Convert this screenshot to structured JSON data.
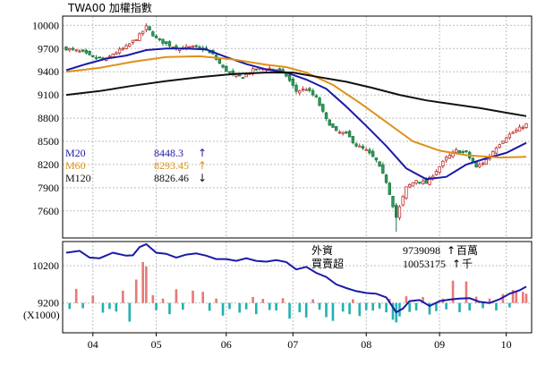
{
  "title": "TWA00 加權指數",
  "x_labels": [
    "04",
    "05",
    "06",
    "07",
    "08",
    "09",
    "10"
  ],
  "chart_data": [
    {
      "type": "candlestick",
      "title": "TWA00 加權指數",
      "yticks": [
        10000,
        9700,
        9400,
        9100,
        8800,
        8500,
        8200,
        7900,
        7600
      ],
      "ylim": [
        7250,
        10120
      ],
      "grid": true,
      "legend": [
        {
          "name": "M20",
          "value": "8448.3",
          "arrow": "↑",
          "color": "#1a1aa8"
        },
        {
          "name": "M60",
          "value": "8293.45",
          "arrow": "↑",
          "color": "#e0901a"
        },
        {
          "name": "M120",
          "value": "8826.46",
          "arrow": "↓",
          "color": "#111111"
        }
      ],
      "close_anchors": [
        [
          0,
          9700
        ],
        [
          5,
          9650
        ],
        [
          8,
          9580
        ],
        [
          12,
          9560
        ],
        [
          14,
          9630
        ],
        [
          18,
          9720
        ],
        [
          22,
          9870
        ],
        [
          24,
          9980
        ],
        [
          27,
          9830
        ],
        [
          30,
          9760
        ],
        [
          34,
          9700
        ],
        [
          38,
          9720
        ],
        [
          41,
          9700
        ],
        [
          44,
          9620
        ],
        [
          47,
          9450
        ],
        [
          50,
          9350
        ],
        [
          53,
          9330
        ],
        [
          56,
          9420
        ],
        [
          60,
          9450
        ],
        [
          63,
          9430
        ],
        [
          66,
          9350
        ],
        [
          69,
          9150
        ],
        [
          72,
          9180
        ],
        [
          75,
          9060
        ],
        [
          78,
          8780
        ],
        [
          81,
          8620
        ],
        [
          84,
          8600
        ],
        [
          87,
          8450
        ],
        [
          90,
          8380
        ],
        [
          93,
          8250
        ],
        [
          96,
          7980
        ],
        [
          99,
          7520
        ],
        [
          102,
          7900
        ],
        [
          105,
          8000
        ],
        [
          108,
          7960
        ],
        [
          111,
          8120
        ],
        [
          114,
          8280
        ],
        [
          117,
          8380
        ],
        [
          120,
          8350
        ],
        [
          123,
          8160
        ],
        [
          126,
          8260
        ],
        [
          129,
          8430
        ],
        [
          132,
          8560
        ],
        [
          135,
          8640
        ],
        [
          138,
          8720
        ]
      ],
      "series": [
        {
          "name": "M20",
          "color": "#1a1aa8",
          "points": [
            [
              0,
              9420
            ],
            [
              6,
              9500
            ],
            [
              12,
              9570
            ],
            [
              18,
              9610
            ],
            [
              24,
              9680
            ],
            [
              30,
              9700
            ],
            [
              36,
              9700
            ],
            [
              42,
              9690
            ],
            [
              48,
              9590
            ],
            [
              54,
              9500
            ],
            [
              60,
              9430
            ],
            [
              66,
              9390
            ],
            [
              72,
              9300
            ],
            [
              78,
              9180
            ],
            [
              84,
              8950
            ],
            [
              90,
              8700
            ],
            [
              96,
              8440
            ],
            [
              102,
              8150
            ],
            [
              108,
              8010
            ],
            [
              114,
              8040
            ],
            [
              120,
              8200
            ],
            [
              126,
              8280
            ],
            [
              132,
              8350
            ],
            [
              138,
              8480
            ]
          ]
        },
        {
          "name": "M60",
          "color": "#e0901a",
          "points": [
            [
              0,
              9400
            ],
            [
              10,
              9450
            ],
            [
              20,
              9530
            ],
            [
              30,
              9590
            ],
            [
              40,
              9600
            ],
            [
              50,
              9560
            ],
            [
              60,
              9490
            ],
            [
              66,
              9460
            ],
            [
              72,
              9390
            ],
            [
              80,
              9230
            ],
            [
              88,
              9000
            ],
            [
              96,
              8750
            ],
            [
              104,
              8500
            ],
            [
              112,
              8380
            ],
            [
              120,
              8320
            ],
            [
              130,
              8290
            ],
            [
              138,
              8300
            ]
          ]
        },
        {
          "name": "M120",
          "color": "#111111",
          "points": [
            [
              0,
              9100
            ],
            [
              10,
              9150
            ],
            [
              20,
              9220
            ],
            [
              30,
              9280
            ],
            [
              40,
              9330
            ],
            [
              50,
              9370
            ],
            [
              60,
              9390
            ],
            [
              68,
              9390
            ],
            [
              76,
              9330
            ],
            [
              84,
              9270
            ],
            [
              92,
              9190
            ],
            [
              100,
              9100
            ],
            [
              108,
              9030
            ],
            [
              116,
              8980
            ],
            [
              124,
              8930
            ],
            [
              132,
              8870
            ],
            [
              138,
              8826
            ]
          ]
        }
      ]
    },
    {
      "type": "bar",
      "title": "",
      "yticks": [
        10200,
        9200
      ],
      "unit_label": "(X1000)",
      "ylim": [
        8400,
        10850
      ],
      "legend": [
        {
          "name": "外資",
          "value": "9739098",
          "arrow": "↑",
          "unit": "百萬"
        },
        {
          "name": "買賣超",
          "value": "10053175",
          "arrow": "↑",
          "unit": "千"
        }
      ],
      "line_points": [
        [
          0,
          10550
        ],
        [
          4,
          10600
        ],
        [
          7,
          10420
        ],
        [
          10,
          10400
        ],
        [
          14,
          10550
        ],
        [
          18,
          10470
        ],
        [
          20,
          10480
        ],
        [
          22,
          10700
        ],
        [
          24,
          10780
        ],
        [
          27,
          10550
        ],
        [
          30,
          10520
        ],
        [
          33,
          10420
        ],
        [
          36,
          10500
        ],
        [
          39,
          10530
        ],
        [
          42,
          10470
        ],
        [
          45,
          10380
        ],
        [
          48,
          10380
        ],
        [
          51,
          10330
        ],
        [
          54,
          10400
        ],
        [
          57,
          10330
        ],
        [
          60,
          10310
        ],
        [
          63,
          10350
        ],
        [
          66,
          10300
        ],
        [
          69,
          10100
        ],
        [
          72,
          10170
        ],
        [
          75,
          10010
        ],
        [
          78,
          9900
        ],
        [
          81,
          9700
        ],
        [
          84,
          9600
        ],
        [
          87,
          9520
        ],
        [
          90,
          9470
        ],
        [
          93,
          9450
        ],
        [
          96,
          9350
        ],
        [
          99,
          8950
        ],
        [
          101,
          9050
        ],
        [
          103,
          9250
        ],
        [
          106,
          9280
        ],
        [
          109,
          9120
        ],
        [
          112,
          9250
        ],
        [
          115,
          9290
        ],
        [
          118,
          9320
        ],
        [
          121,
          9330
        ],
        [
          124,
          9230
        ],
        [
          127,
          9200
        ],
        [
          130,
          9300
        ],
        [
          133,
          9450
        ],
        [
          136,
          9540
        ],
        [
          138,
          9640
        ]
      ],
      "bar_values": [
        {
          "x": 3,
          "v": 380
        },
        {
          "x": 8,
          "v": 200
        },
        {
          "x": 17,
          "v": 330
        },
        {
          "x": 21,
          "v": 630
        },
        {
          "x": 23,
          "v": 1100
        },
        {
          "x": 24,
          "v": 980
        },
        {
          "x": 26,
          "v": 210
        },
        {
          "x": 29,
          "v": 120
        },
        {
          "x": 33,
          "v": 370
        },
        {
          "x": 38,
          "v": 330
        },
        {
          "x": 41,
          "v": 300
        },
        {
          "x": 45,
          "v": 120
        },
        {
          "x": 56,
          "v": 160
        },
        {
          "x": 59,
          "v": 110
        },
        {
          "x": 65,
          "v": 130
        },
        {
          "x": 74,
          "v": 100
        },
        {
          "x": 86,
          "v": 100
        },
        {
          "x": 97,
          "v": 110
        },
        {
          "x": 102,
          "v": 180
        },
        {
          "x": 107,
          "v": 160
        },
        {
          "x": 113,
          "v": 120
        },
        {
          "x": 116,
          "v": 600
        },
        {
          "x": 120,
          "v": 580
        },
        {
          "x": 123,
          "v": 170
        },
        {
          "x": 127,
          "v": 120
        },
        {
          "x": 131,
          "v": 240
        },
        {
          "x": 134,
          "v": 350
        },
        {
          "x": 135,
          "v": 320
        },
        {
          "x": 137,
          "v": 300
        },
        {
          "x": 138,
          "v": 250
        },
        {
          "x": 1,
          "v": -160
        },
        {
          "x": 5,
          "v": -140
        },
        {
          "x": 11,
          "v": -260
        },
        {
          "x": 13,
          "v": -160
        },
        {
          "x": 15,
          "v": -230
        },
        {
          "x": 19,
          "v": -500
        },
        {
          "x": 27,
          "v": -190
        },
        {
          "x": 31,
          "v": -300
        },
        {
          "x": 35,
          "v": -180
        },
        {
          "x": 43,
          "v": -210
        },
        {
          "x": 47,
          "v": -340
        },
        {
          "x": 49,
          "v": -160
        },
        {
          "x": 52,
          "v": -260
        },
        {
          "x": 54,
          "v": -170
        },
        {
          "x": 57,
          "v": -300
        },
        {
          "x": 61,
          "v": -190
        },
        {
          "x": 63,
          "v": -200
        },
        {
          "x": 67,
          "v": -420
        },
        {
          "x": 70,
          "v": -250
        },
        {
          "x": 72,
          "v": -390
        },
        {
          "x": 76,
          "v": -180
        },
        {
          "x": 78,
          "v": -380
        },
        {
          "x": 80,
          "v": -480
        },
        {
          "x": 83,
          "v": -230
        },
        {
          "x": 85,
          "v": -300
        },
        {
          "x": 88,
          "v": -350
        },
        {
          "x": 90,
          "v": -190
        },
        {
          "x": 92,
          "v": -200
        },
        {
          "x": 94,
          "v": -150
        },
        {
          "x": 96,
          "v": -250
        },
        {
          "x": 98,
          "v": -450
        },
        {
          "x": 99,
          "v": -520
        },
        {
          "x": 100,
          "v": -360
        },
        {
          "x": 103,
          "v": -240
        },
        {
          "x": 105,
          "v": -200
        },
        {
          "x": 109,
          "v": -310
        },
        {
          "x": 111,
          "v": -220
        },
        {
          "x": 114,
          "v": -170
        },
        {
          "x": 118,
          "v": -250
        },
        {
          "x": 121,
          "v": -200
        },
        {
          "x": 125,
          "v": -140
        },
        {
          "x": 129,
          "v": -200
        },
        {
          "x": 133,
          "v": -120
        }
      ]
    }
  ],
  "colors": {
    "up": "#e87878",
    "down": "#22b0b0",
    "grid": "#bdbdbd"
  }
}
